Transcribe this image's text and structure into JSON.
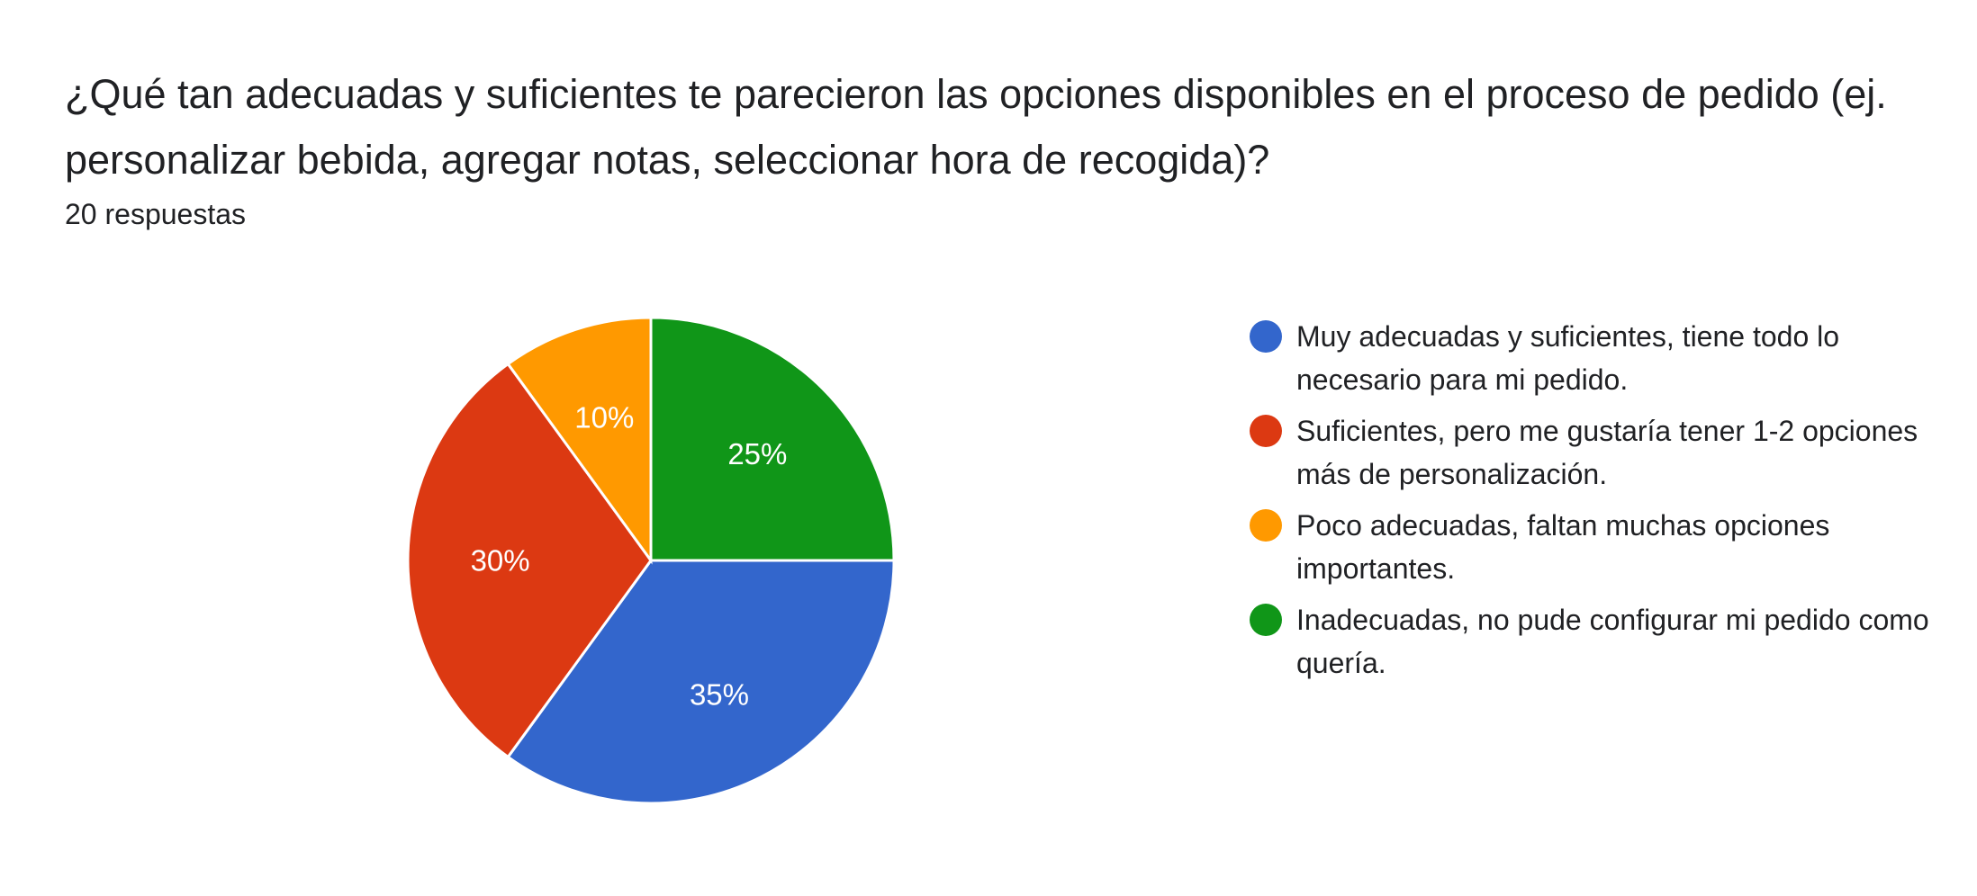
{
  "question": {
    "title": "¿Qué tan adecuadas y suficientes te parecieron las opciones disponibles en el proceso de pedido (ej. personalizar bebida, agregar notas, seleccionar hora de recogida)?",
    "responses": "20 respuestas"
  },
  "chart_data": {
    "type": "pie",
    "legend_position": "right",
    "slices": [
      {
        "label": "Muy adecuadas y suficientes, tiene todo lo necesario para mi pedido.",
        "value": 35,
        "display": "35%",
        "color": "#3366cc"
      },
      {
        "label": "Suficientes, pero me gustaría tener 1-2 opciones más de personalización.",
        "value": 30,
        "display": "30%",
        "color": "#dc3912"
      },
      {
        "label": "Poco adecuadas, faltan muchas opciones importantes.",
        "value": 10,
        "display": "10%",
        "color": "#ff9900"
      },
      {
        "label": "Inadecuadas, no pude configurar mi pedido como quería.",
        "value": 25,
        "display": "25%",
        "color": "#109618"
      }
    ]
  }
}
